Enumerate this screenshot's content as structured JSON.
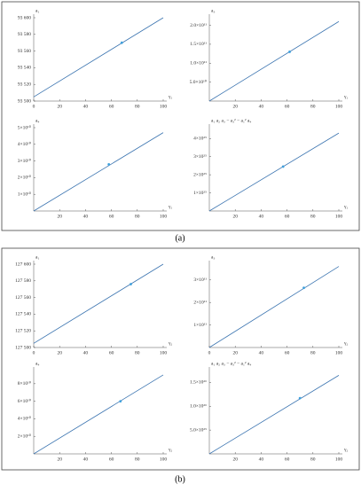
{
  "panel_labels": [
    "(a)",
    "(b)"
  ],
  "chart_data": [
    {
      "type": "line",
      "y_label": "a₁",
      "x_label": "γ₁",
      "x": [
        0,
        100
      ],
      "series": [
        {
          "color": "#3b74b0",
          "values": [
            93505,
            93600
          ]
        }
      ],
      "marker": {
        "x": 68,
        "y": 93570,
        "color": "#3fa0dc"
      },
      "xlim": [
        0,
        100
      ],
      "xticks": [
        0,
        20,
        40,
        60,
        80,
        100
      ],
      "ylim": [
        93500,
        93600
      ],
      "yticks": [
        {
          "value": 93500,
          "label": "93 500"
        },
        {
          "value": 93520,
          "label": "93 520"
        },
        {
          "value": 93540,
          "label": "93 540"
        },
        {
          "value": 93560,
          "label": "93 560"
        },
        {
          "value": 93580,
          "label": "93 580"
        },
        {
          "value": 93600,
          "label": "93 600"
        }
      ]
    },
    {
      "type": "line",
      "y_label": "a₃",
      "x_label": "γ₁",
      "x": [
        0,
        100
      ],
      "series": [
        {
          "color": "#3b74b0",
          "values": [
            0,
            210000000000.0
          ]
        }
      ],
      "marker": {
        "x": 62,
        "y": 130000000000.0,
        "color": "#3fa0dc"
      },
      "xlim": [
        0,
        100
      ],
      "xticks": [
        20,
        40,
        60,
        80,
        100
      ],
      "ylim": [
        0,
        220000000000.0
      ],
      "yticks": [
        {
          "value": 50000000000.0,
          "label": "5.0×10¹⁰"
        },
        {
          "value": 100000000000.0,
          "label": "1.0×10¹¹"
        },
        {
          "value": 150000000000.0,
          "label": "1.5×10¹¹"
        },
        {
          "value": 200000000000.0,
          "label": "2.0×10¹¹"
        }
      ]
    },
    {
      "type": "line",
      "y_label": "a₄",
      "x_label": "γ₁",
      "x": [
        0,
        100
      ],
      "series": [
        {
          "color": "#3b74b0",
          "values": [
            0,
            47000000000.0
          ]
        }
      ],
      "marker": {
        "x": 58,
        "y": 28000000000.0,
        "color": "#3fa0dc"
      },
      "xlim": [
        0,
        100
      ],
      "xticks": [
        20,
        40,
        60,
        80,
        100
      ],
      "ylim": [
        0,
        50000000000.0
      ],
      "yticks": [
        {
          "value": 10000000000.0,
          "label": "1×10¹⁰"
        },
        {
          "value": 20000000000.0,
          "label": "2×10¹⁰"
        },
        {
          "value": 30000000000.0,
          "label": "3×10¹⁰"
        },
        {
          "value": 40000000000.0,
          "label": "4×10¹⁰"
        },
        {
          "value": 50000000000.0,
          "label": "5×10¹⁰"
        }
      ]
    },
    {
      "type": "line",
      "y_label": "a₁ a₂ a₃ − a₃² − a₁² a₄",
      "x_label": "γ₁",
      "x": [
        0,
        100
      ],
      "series": [
        {
          "color": "#3b74b0",
          "values": [
            0,
            4.3e+25
          ]
        }
      ],
      "marker": {
        "x": 57,
        "y": 2.45e+25,
        "color": "#3fa0dc"
      },
      "xlim": [
        0,
        100
      ],
      "xticks": [
        20,
        40,
        60,
        80,
        100
      ],
      "ylim": [
        0,
        4.6e+25
      ],
      "yticks": [
        {
          "value": 1e+25,
          "label": "1×10²⁵"
        },
        {
          "value": 2e+25,
          "label": "2×10²⁵"
        },
        {
          "value": 3e+25,
          "label": "3×10²⁵"
        },
        {
          "value": 4e+25,
          "label": "4×10²⁵"
        }
      ]
    },
    {
      "type": "line",
      "y_label": "a₁",
      "x_label": "γ₂",
      "x": [
        0,
        100
      ],
      "series": [
        {
          "color": "#3b74b0",
          "values": [
            127505,
            127600
          ]
        }
      ],
      "marker": {
        "x": 75,
        "y": 127576,
        "color": "#3fa0dc"
      },
      "xlim": [
        0,
        100
      ],
      "xticks": [
        0,
        20,
        40,
        60,
        80,
        100
      ],
      "ylim": [
        127500,
        127600
      ],
      "yticks": [
        {
          "value": 127500,
          "label": "127 500"
        },
        {
          "value": 127520,
          "label": "127 520"
        },
        {
          "value": 127540,
          "label": "127 540"
        },
        {
          "value": 127560,
          "label": "127 560"
        },
        {
          "value": 127580,
          "label": "127 580"
        },
        {
          "value": 127600,
          "label": "127 600"
        }
      ]
    },
    {
      "type": "line",
      "y_label": "a₃",
      "x_label": "γ₂",
      "x": [
        0,
        100
      ],
      "series": [
        {
          "color": "#3b74b0",
          "values": [
            0,
            360000000000.0
          ]
        }
      ],
      "marker": {
        "x": 73,
        "y": 265000000000.0,
        "color": "#3fa0dc"
      },
      "xlim": [
        0,
        100
      ],
      "xticks": [
        0,
        20,
        40,
        60,
        80,
        100
      ],
      "ylim": [
        0,
        370000000000.0
      ],
      "yticks": [
        {
          "value": 100000000000.0,
          "label": "1×10¹¹"
        },
        {
          "value": 200000000000.0,
          "label": "2×10¹¹"
        },
        {
          "value": 300000000000.0,
          "label": "3×10¹¹"
        }
      ]
    },
    {
      "type": "line",
      "y_label": "a₄",
      "x_label": "γ₂",
      "x": [
        0,
        100
      ],
      "series": [
        {
          "color": "#3b74b0",
          "values": [
            0,
            90000000000.0
          ]
        }
      ],
      "marker": {
        "x": 67,
        "y": 60000000000.0,
        "color": "#3fa0dc"
      },
      "xlim": [
        0,
        100
      ],
      "xticks": [
        20,
        40,
        60,
        80,
        100
      ],
      "ylim": [
        0,
        95000000000.0
      ],
      "yticks": [
        {
          "value": 20000000000.0,
          "label": "2×10¹⁰"
        },
        {
          "value": 40000000000.0,
          "label": "4×10¹⁰"
        },
        {
          "value": 60000000000.0,
          "label": "6×10¹⁰"
        },
        {
          "value": 80000000000.0,
          "label": "8×10¹⁰"
        }
      ]
    },
    {
      "type": "line",
      "y_label": "a₁ a₂ a₃ − a₃² − a₁² a₄",
      "x_label": "γ₂",
      "x": [
        0,
        100
      ],
      "series": [
        {
          "color": "#3b74b0",
          "values": [
            0,
            1.65e+26
          ]
        }
      ],
      "marker": {
        "x": 70,
        "y": 1.17e+26,
        "color": "#3fa0dc"
      },
      "xlim": [
        0,
        100
      ],
      "xticks": [
        20,
        40,
        60,
        80,
        100
      ],
      "ylim": [
        0,
        1.75e+26
      ],
      "yticks": [
        {
          "value": 5e+25,
          "label": "5.0×10²⁵"
        },
        {
          "value": 1e+26,
          "label": "1.0×10²⁶"
        },
        {
          "value": 1.5e+26,
          "label": "1.5×10²⁶"
        }
      ]
    }
  ]
}
